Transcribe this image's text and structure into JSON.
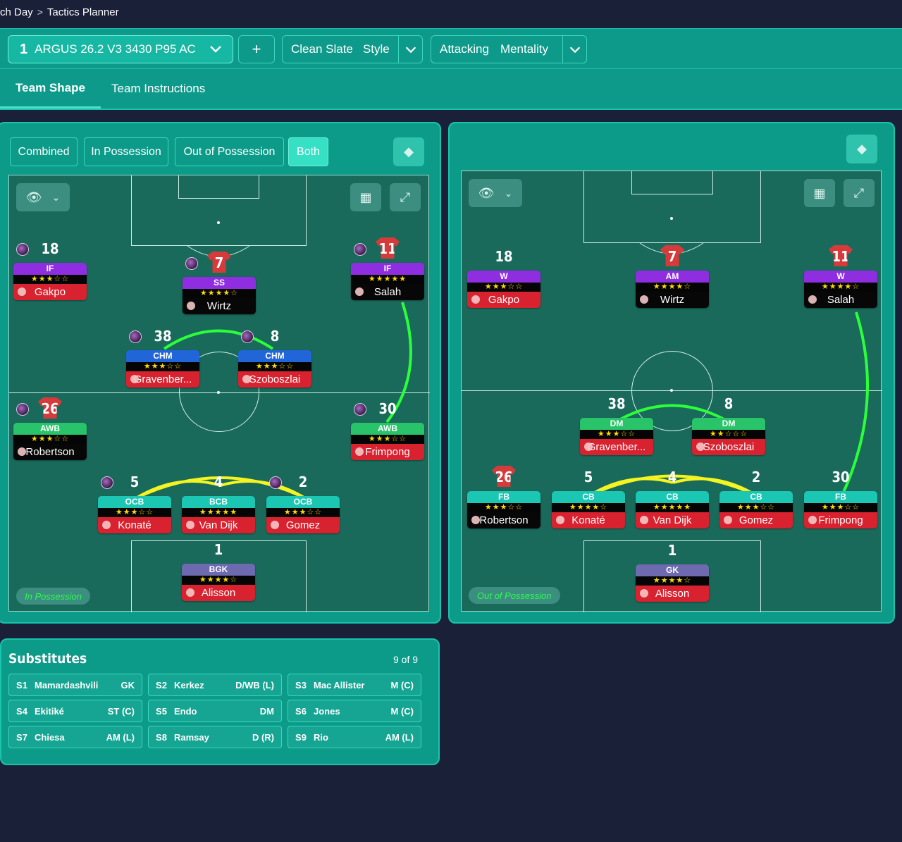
{
  "breadcrumb": {
    "parent": "ch Day",
    "separator": ">",
    "current": "Tactics Planner"
  },
  "topbar": {
    "tactic": {
      "slot": "1",
      "name": "ARGUS 26.2 V3 3430 P95 AC"
    },
    "add_label": "+",
    "style": {
      "value": "Clean Slate",
      "label": "Style"
    },
    "mentality": {
      "value": "Attacking",
      "label": "Mentality"
    }
  },
  "tabs": [
    {
      "label": "Team Shape"
    },
    {
      "label": "Team Instructions"
    }
  ],
  "left_panel": {
    "segments": [
      "Combined",
      "In Possession",
      "Out of Possession",
      "Both"
    ],
    "active_segment": "Both",
    "phase_label": "In Possession",
    "players": [
      {
        "num": "18",
        "role": "IF",
        "rating": 3,
        "name": "Gakpo",
        "shirt": "ghost",
        "role_color": "#8f2ee0",
        "name_bg": "#d9222f",
        "ball": true
      },
      {
        "num": "7",
        "role": "SS",
        "rating": 4,
        "name": "Wirtz",
        "shirt": "red",
        "role_color": "#8f2ee0",
        "name_bg": "#070707",
        "ball": true
      },
      {
        "num": "11",
        "role": "IF",
        "rating": 4.5,
        "name": "Salah",
        "shirt": "red",
        "role_color": "#8f2ee0",
        "name_bg": "#070707",
        "ball": true
      },
      {
        "num": "38",
        "role": "CHM",
        "rating": 3,
        "name": "Gravenber...",
        "shirt": "ghost",
        "role_color": "#2166d8",
        "name_bg": "#d9222f",
        "ball": true
      },
      {
        "num": "8",
        "role": "CHM",
        "rating": 3,
        "name": "Szoboszlai",
        "shirt": "ghost",
        "role_color": "#2166d8",
        "name_bg": "#d9222f",
        "ball": true
      },
      {
        "num": "26",
        "role": "AWB",
        "rating": 2.5,
        "name": "Robertson",
        "shirt": "red",
        "role_color": "#29c46a",
        "name_bg": "#070707",
        "ball": true
      },
      {
        "num": "30",
        "role": "AWB",
        "rating": 2.5,
        "name": "Frimpong",
        "shirt": "ghost",
        "role_color": "#29c46a",
        "name_bg": "#d9222f",
        "ball": true
      },
      {
        "num": "5",
        "role": "OCB",
        "rating": 3,
        "name": "Konaté",
        "shirt": "ghost",
        "role_color": "#1bc6b3",
        "name_bg": "#d9222f",
        "ball": true
      },
      {
        "num": "4",
        "role": "BCB",
        "rating": 4.5,
        "name": "Van Dijk",
        "shirt": "ghost",
        "role_color": "#1bc6b3",
        "name_bg": "#d9222f",
        "ball": false
      },
      {
        "num": "2",
        "role": "OCB",
        "rating": 2.5,
        "name": "Gomez",
        "shirt": "ghost",
        "role_color": "#1bc6b3",
        "name_bg": "#d9222f",
        "ball": true
      },
      {
        "num": "1",
        "role": "BGK",
        "rating": 4,
        "name": "Alisson",
        "shirt": "ghost",
        "role_color": "#6e6ab0",
        "name_bg": "#d9222f",
        "ball": false
      }
    ]
  },
  "right_panel": {
    "phase_label": "Out of Possession",
    "players": [
      {
        "num": "18",
        "role": "W",
        "rating": 3,
        "name": "Gakpo",
        "shirt": "ghost",
        "role_color": "#8f2ee0",
        "name_bg": "#d9222f"
      },
      {
        "num": "7",
        "role": "AM",
        "rating": 4,
        "name": "Wirtz",
        "shirt": "red",
        "role_color": "#8f2ee0",
        "name_bg": "#070707"
      },
      {
        "num": "11",
        "role": "W",
        "rating": 4,
        "name": "Salah",
        "shirt": "red",
        "role_color": "#8f2ee0",
        "name_bg": "#070707"
      },
      {
        "num": "38",
        "role": "DM",
        "rating": 3,
        "name": "Gravenber...",
        "shirt": "ghost",
        "role_color": "#29c46a",
        "name_bg": "#d9222f"
      },
      {
        "num": "8",
        "role": "DM",
        "rating": 2,
        "name": "Szoboszlai",
        "shirt": "ghost",
        "role_color": "#29c46a",
        "name_bg": "#d9222f"
      },
      {
        "num": "26",
        "role": "FB",
        "rating": 2.5,
        "name": "Robertson",
        "shirt": "red",
        "role_color": "#1bc6b3",
        "name_bg": "#070707"
      },
      {
        "num": "5",
        "role": "CB",
        "rating": 3.5,
        "name": "Konaté",
        "shirt": "ghost",
        "role_color": "#1bc6b3",
        "name_bg": "#d9222f"
      },
      {
        "num": "4",
        "role": "CB",
        "rating": 4.5,
        "name": "Van Dijk",
        "shirt": "ghost",
        "role_color": "#1bc6b3",
        "name_bg": "#d9222f"
      },
      {
        "num": "2",
        "role": "CB",
        "rating": 2.5,
        "name": "Gomez",
        "shirt": "ghost",
        "role_color": "#1bc6b3",
        "name_bg": "#d9222f"
      },
      {
        "num": "30",
        "role": "FB",
        "rating": 2.5,
        "name": "Frimpong",
        "shirt": "ghost",
        "role_color": "#1bc6b3",
        "name_bg": "#d9222f"
      },
      {
        "num": "1",
        "role": "GK",
        "rating": 4,
        "name": "Alisson",
        "shirt": "ghost",
        "role_color": "#6e6ab0",
        "name_bg": "#d9222f"
      }
    ]
  },
  "icons": {
    "view": "eye-icon",
    "dropdown": "chevron-down-icon",
    "grid": "grid-icon",
    "expand": "expand-icon",
    "pin": "diamond-icon"
  },
  "substitutes": {
    "title": "Substitutes",
    "count": "9 of 9",
    "list": [
      {
        "slot": "S1",
        "name": "Mamardashvili",
        "pos": "GK"
      },
      {
        "slot": "S2",
        "name": "Kerkez",
        "pos": "D/WB (L)"
      },
      {
        "slot": "S3",
        "name": "Mac Allister",
        "pos": "M (C)"
      },
      {
        "slot": "S4",
        "name": "Ekitiké",
        "pos": "ST (C)"
      },
      {
        "slot": "S5",
        "name": "Endo",
        "pos": "DM"
      },
      {
        "slot": "S6",
        "name": "Jones",
        "pos": "M (C)"
      },
      {
        "slot": "S7",
        "name": "Chiesa",
        "pos": "AM (L)"
      },
      {
        "slot": "S8",
        "name": "Ramsay",
        "pos": "D (R)"
      },
      {
        "slot": "S9",
        "name": "Rio",
        "pos": "AM (L)"
      }
    ]
  }
}
